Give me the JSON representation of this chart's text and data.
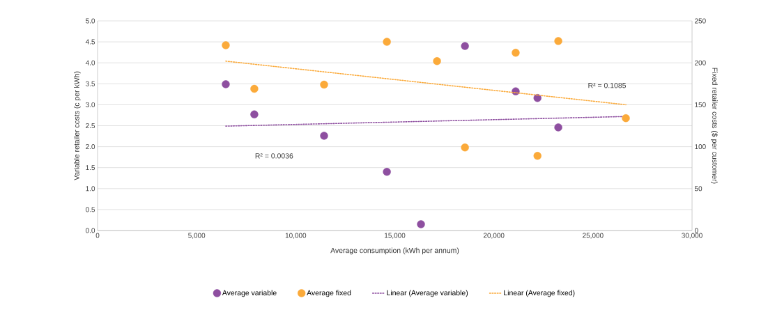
{
  "chart_data": {
    "type": "scatter",
    "xlabel": "Average consumption (kWh per annum)",
    "ylabel": "Variable retailer costs (c per kWh)",
    "y2label": "Fixed retailer costs ($ per customer)",
    "xlim": [
      0,
      30000
    ],
    "xticks": [
      {
        "value": 0,
        "label": "0"
      },
      {
        "value": 5000,
        "label": "5,000"
      },
      {
        "value": 10000,
        "label": "10,000"
      },
      {
        "value": 15000,
        "label": "15,000"
      },
      {
        "value": 20000,
        "label": "20,000"
      },
      {
        "value": 25000,
        "label": "25,000"
      },
      {
        "value": 30000,
        "label": "30,000"
      }
    ],
    "ylim": [
      0,
      5
    ],
    "yticks": [
      {
        "value": 0,
        "label": "0.0"
      },
      {
        "value": 0.5,
        "label": "0.5"
      },
      {
        "value": 1,
        "label": "1.0"
      },
      {
        "value": 1.5,
        "label": "1.5"
      },
      {
        "value": 2,
        "label": "2.0"
      },
      {
        "value": 2.5,
        "label": "2.5"
      },
      {
        "value": 3,
        "label": "3.0"
      },
      {
        "value": 3.5,
        "label": "3.5"
      },
      {
        "value": 4,
        "label": "4.0"
      },
      {
        "value": 4.5,
        "label": "4.5"
      },
      {
        "value": 5,
        "label": "5.0"
      }
    ],
    "y2lim": [
      0,
      250
    ],
    "y2ticks": [
      0,
      50,
      100,
      150,
      200,
      250
    ],
    "grid": "y",
    "legend": "bottom",
    "series": [
      {
        "name": "Average variable",
        "color": "#8e4fa0",
        "x": [
          16320,
          14600,
          11430,
          7910,
          6470,
          18540,
          21100,
          22200,
          23250
        ],
        "values": [
          0.15,
          1.4,
          2.26,
          2.77,
          3.49,
          4.4,
          3.32,
          3.16,
          2.46
        ]
      },
      {
        "name": "Average fixed",
        "color": "#fbaa3a",
        "axis": "y2",
        "x": [
          6470,
          7910,
          11430,
          14600,
          17130,
          18540,
          21100,
          22200,
          23250,
          26660
        ],
        "values": [
          221,
          169,
          174,
          225,
          202,
          99,
          212,
          89,
          226,
          134
        ]
      },
      {
        "name": "Linear (Average variable)",
        "type": "line",
        "marker": "none",
        "line_style": "dotted",
        "color": "#8e4fa0",
        "x": [
          6470,
          26660
        ],
        "values": [
          2.49,
          2.72
        ]
      },
      {
        "name": "Linear (Average fixed)",
        "type": "line",
        "marker": "none",
        "line_style": "dotted",
        "color": "#fbaa3a",
        "axis": "y2",
        "x": [
          6470,
          26660
        ],
        "values": [
          202,
          150
        ]
      }
    ],
    "marker": "circle",
    "annotations": [
      "R² = 0.0036",
      "R² = 0.1085"
    ]
  }
}
